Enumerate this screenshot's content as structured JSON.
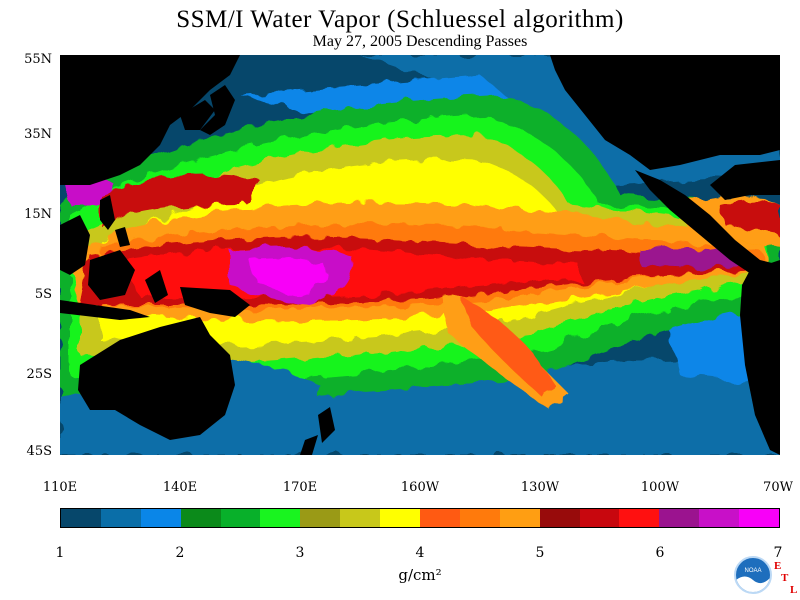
{
  "header": {
    "title": "SSM/I Water Vapor (Schluessel algorithm)",
    "subtitle": "May 27, 2005  Descending Passes"
  },
  "map": {
    "projection": "lat-lon",
    "lat_labels": [
      "55N",
      "35N",
      "15N",
      "5S",
      "25S",
      "45S"
    ],
    "lon_labels": [
      "110E",
      "140E",
      "170E",
      "160W",
      "130W",
      "100W",
      "70W"
    ],
    "colors": {
      "land": "#000000",
      "ocean_dry": "#06476b"
    }
  },
  "colorbar": {
    "tick_labels": [
      "1",
      "2",
      "3",
      "4",
      "5",
      "6",
      "7"
    ],
    "unit": "g/cm²",
    "colors": [
      "#06476b",
      "#0a6ea8",
      "#0a86e8",
      "#0b8a1a",
      "#08b02a",
      "#19f41f",
      "#9a9a16",
      "#c8c81a",
      "#ffff00",
      "#ff5a12",
      "#ff7a0c",
      "#ff9e12",
      "#980b0b",
      "#c8070e",
      "#ff1010",
      "#9b138f",
      "#c810c8",
      "#f800f8"
    ]
  },
  "logo": {
    "icon": "noaa-logo-icon",
    "text": "NOAA",
    "etl_letters": [
      "E",
      "T",
      "L"
    ]
  }
}
